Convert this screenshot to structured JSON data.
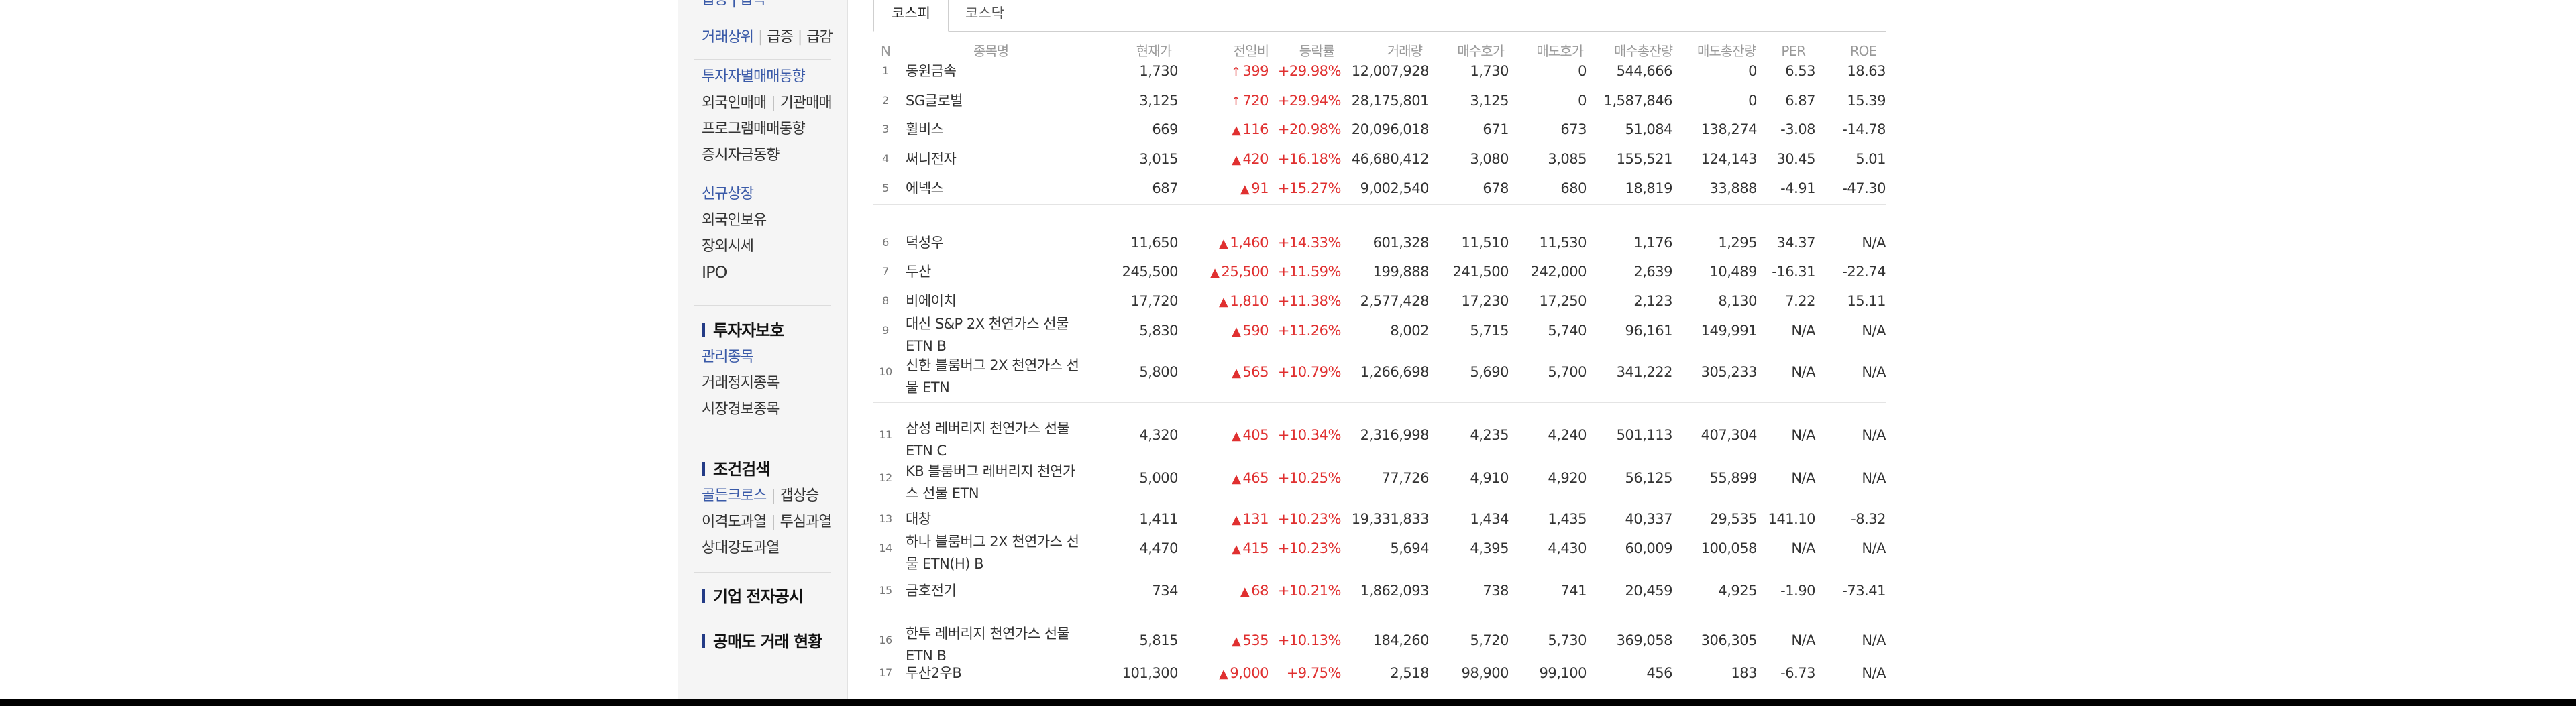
{
  "sidebar": {
    "top_partial": "급등 | 급락",
    "groups": [
      {
        "items": [
          {
            "parts": [
              "거래상위",
              "급증",
              "급감"
            ],
            "blue": true
          }
        ]
      },
      {
        "items": [
          {
            "parts": [
              "투자자별매매동향"
            ],
            "blue": true
          },
          {
            "parts": [
              "외국인매매",
              "기관매매"
            ],
            "blue": false
          },
          {
            "parts": [
              "프로그램매매동향"
            ],
            "blue": false
          },
          {
            "parts": [
              "증시자금동향"
            ],
            "blue": false
          }
        ]
      },
      {
        "items": [
          {
            "parts": [
              "신규상장"
            ],
            "blue": true
          },
          {
            "parts": [
              "외국인보유"
            ],
            "blue": false
          },
          {
            "parts": [
              "장외시세"
            ],
            "blue": false
          },
          {
            "parts": [
              "IPO"
            ],
            "blue": false
          }
        ]
      }
    ],
    "section_investor": {
      "title": "투자자보호",
      "items": [
        "관리종목",
        "거래정지종목",
        "시장경보종목"
      ]
    },
    "section_condition": {
      "title": "조건검색",
      "items": [
        [
          "골든크로스",
          "갭상승"
        ],
        [
          "이격도과열",
          "투심과열"
        ],
        [
          "상대강도과열"
        ]
      ]
    },
    "section_disclosure": "기업 전자공시",
    "section_short": "공매도 거래 현황"
  },
  "tabs": [
    "코스피",
    "코스닥"
  ],
  "columns": [
    "N",
    "종목명",
    "현재가",
    "전일비",
    "등락률",
    "거래량",
    "매수호가",
    "매도호가",
    "매수총잔량",
    "매도총잔량",
    "PER",
    "ROE"
  ],
  "rows": [
    {
      "n": "1",
      "name": "동원금속",
      "price": "1,730",
      "arrow": "upper",
      "chg": "399",
      "rate": "+29.98%",
      "vol": "12,007,928",
      "bid": "1,730",
      "ask": "0",
      "bidq": "544,666",
      "askq": "0",
      "per": "6.53",
      "roe": "18.63"
    },
    {
      "n": "2",
      "name": "SG글로벌",
      "price": "3,125",
      "arrow": "upper",
      "chg": "720",
      "rate": "+29.94%",
      "vol": "28,175,801",
      "bid": "3,125",
      "ask": "0",
      "bidq": "1,587,846",
      "askq": "0",
      "per": "6.87",
      "roe": "15.39"
    },
    {
      "n": "3",
      "name": "휠비스",
      "price": "669",
      "arrow": "up",
      "chg": "116",
      "rate": "+20.98%",
      "vol": "20,096,018",
      "bid": "671",
      "ask": "673",
      "bidq": "51,084",
      "askq": "138,274",
      "per": "-3.08",
      "roe": "-14.78"
    },
    {
      "n": "4",
      "name": "써니전자",
      "price": "3,015",
      "arrow": "up",
      "chg": "420",
      "rate": "+16.18%",
      "vol": "46,680,412",
      "bid": "3,080",
      "ask": "3,085",
      "bidq": "155,521",
      "askq": "124,143",
      "per": "30.45",
      "roe": "5.01"
    },
    {
      "n": "5",
      "name": "에넥스",
      "price": "687",
      "arrow": "up",
      "chg": "91",
      "rate": "+15.27%",
      "vol": "9,002,540",
      "bid": "678",
      "ask": "680",
      "bidq": "18,819",
      "askq": "33,888",
      "per": "-4.91",
      "roe": "-47.30"
    },
    {
      "n": "6",
      "name": "덕성우",
      "price": "11,650",
      "arrow": "up",
      "chg": "1,460",
      "rate": "+14.33%",
      "vol": "601,328",
      "bid": "11,510",
      "ask": "11,530",
      "bidq": "1,176",
      "askq": "1,295",
      "per": "34.37",
      "roe": "N/A"
    },
    {
      "n": "7",
      "name": "두산",
      "price": "245,500",
      "arrow": "up",
      "chg": "25,500",
      "rate": "+11.59%",
      "vol": "199,888",
      "bid": "241,500",
      "ask": "242,000",
      "bidq": "2,639",
      "askq": "10,489",
      "per": "-16.31",
      "roe": "-22.74"
    },
    {
      "n": "8",
      "name": "비에이치",
      "price": "17,720",
      "arrow": "up",
      "chg": "1,810",
      "rate": "+11.38%",
      "vol": "2,577,428",
      "bid": "17,230",
      "ask": "17,250",
      "bidq": "2,123",
      "askq": "8,130",
      "per": "7.22",
      "roe": "15.11"
    },
    {
      "n": "9",
      "name": "대신 S&P 2X 천연가스 선물 ETN B",
      "price": "5,830",
      "arrow": "up",
      "chg": "590",
      "rate": "+11.26%",
      "vol": "8,002",
      "bid": "5,715",
      "ask": "5,740",
      "bidq": "96,161",
      "askq": "149,991",
      "per": "N/A",
      "roe": "N/A"
    },
    {
      "n": "10",
      "name": "신한 블룸버그 2X 천연가스 선물 ETN",
      "price": "5,800",
      "arrow": "up",
      "chg": "565",
      "rate": "+10.79%",
      "vol": "1,266,698",
      "bid": "5,690",
      "ask": "5,700",
      "bidq": "341,222",
      "askq": "305,233",
      "per": "N/A",
      "roe": "N/A"
    },
    {
      "n": "11",
      "name": "삼성 레버리지 천연가스 선물 ETN C",
      "price": "4,320",
      "arrow": "up",
      "chg": "405",
      "rate": "+10.34%",
      "vol": "2,316,998",
      "bid": "4,235",
      "ask": "4,240",
      "bidq": "501,113",
      "askq": "407,304",
      "per": "N/A",
      "roe": "N/A"
    },
    {
      "n": "12",
      "name": "KB 블룸버그 레버리지 천연가스 선물 ETN",
      "price": "5,000",
      "arrow": "up",
      "chg": "465",
      "rate": "+10.25%",
      "vol": "77,726",
      "bid": "4,910",
      "ask": "4,920",
      "bidq": "56,125",
      "askq": "55,899",
      "per": "N/A",
      "roe": "N/A"
    },
    {
      "n": "13",
      "name": "대창",
      "price": "1,411",
      "arrow": "up",
      "chg": "131",
      "rate": "+10.23%",
      "vol": "19,331,833",
      "bid": "1,434",
      "ask": "1,435",
      "bidq": "40,337",
      "askq": "29,535",
      "per": "141.10",
      "roe": "-8.32"
    },
    {
      "n": "14",
      "name": "하나 블룸버그 2X 천연가스 선물 ETN(H) B",
      "price": "4,470",
      "arrow": "up",
      "chg": "415",
      "rate": "+10.23%",
      "vol": "5,694",
      "bid": "4,395",
      "ask": "4,430",
      "bidq": "60,009",
      "askq": "100,058",
      "per": "N/A",
      "roe": "N/A"
    },
    {
      "n": "15",
      "name": "금호전기",
      "price": "734",
      "arrow": "up",
      "chg": "68",
      "rate": "+10.21%",
      "vol": "1,862,093",
      "bid": "738",
      "ask": "741",
      "bidq": "20,459",
      "askq": "4,925",
      "per": "-1.90",
      "roe": "-73.41"
    },
    {
      "n": "16",
      "name": "한투 레버리지 천연가스 선물 ETN B",
      "price": "5,815",
      "arrow": "up",
      "chg": "535",
      "rate": "+10.13%",
      "vol": "184,260",
      "bid": "5,720",
      "ask": "5,730",
      "bidq": "369,058",
      "askq": "306,305",
      "per": "N/A",
      "roe": "N/A"
    },
    {
      "n": "17",
      "name": "두산2우B",
      "price": "101,300",
      "arrow": "up",
      "chg": "9,000",
      "rate": "+9.75%",
      "vol": "2,518",
      "bid": "98,900",
      "ask": "99,100",
      "bidq": "456",
      "askq": "183",
      "per": "-6.73",
      "roe": "N/A"
    }
  ],
  "arrow_glyphs": {
    "upper": "↑",
    "up": "▲"
  },
  "colors": {
    "up": "#e03030",
    "link_blue": "#3a5aa8",
    "section_bar": "#233b86"
  }
}
